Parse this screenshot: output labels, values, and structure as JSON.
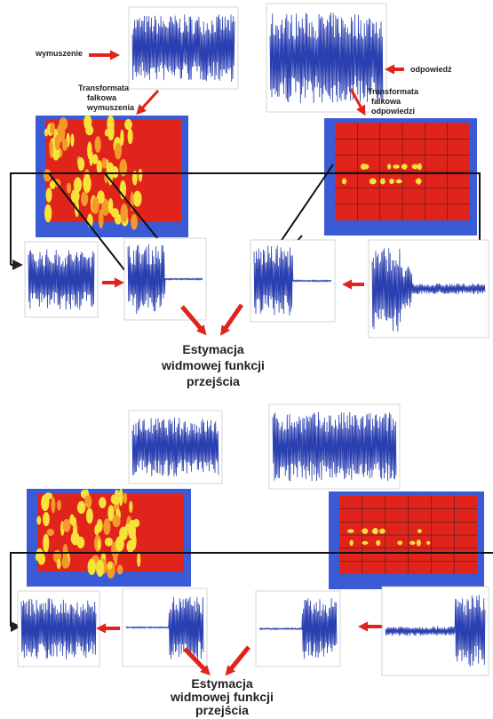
{
  "top": {
    "excitation_label": "wymuszenie",
    "response_label": "odpowiedź",
    "excitation_transform": [
      "Transformata",
      "falkowa",
      "wymuszenia"
    ],
    "response_transform": [
      "Transformata",
      "falkowa",
      "odpowiedzi"
    ],
    "result": [
      "Estymacja",
      "widmowej funkcji",
      "przejścia"
    ]
  },
  "bottom": {
    "result": [
      "Estymacja",
      "widmowej funkcji",
      "przejścia"
    ]
  }
}
